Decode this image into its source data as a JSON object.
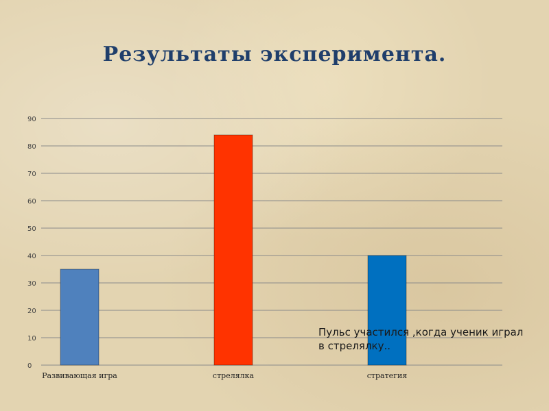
{
  "title": "Результаты эксперимента.",
  "note": "Пульс участился ,когда ученик играл в стрелялку..",
  "colors": {
    "background": "#e3d4b1",
    "title": "#1f3e6b",
    "gridline": "#8a8a8a"
  },
  "chart_data": {
    "type": "bar",
    "categories": [
      "Развивающая игра",
      "стрелялка",
      "стратегия"
    ],
    "values": [
      35,
      84,
      40
    ],
    "bar_colors": [
      "#4f81bd",
      "#ff3300",
      "#0070c0"
    ],
    "ylim": [
      0,
      90
    ],
    "yticks": [
      0,
      10,
      20,
      30,
      40,
      50,
      60,
      70,
      80,
      90
    ],
    "grid": true,
    "title": "",
    "xlabel": "",
    "ylabel": ""
  }
}
